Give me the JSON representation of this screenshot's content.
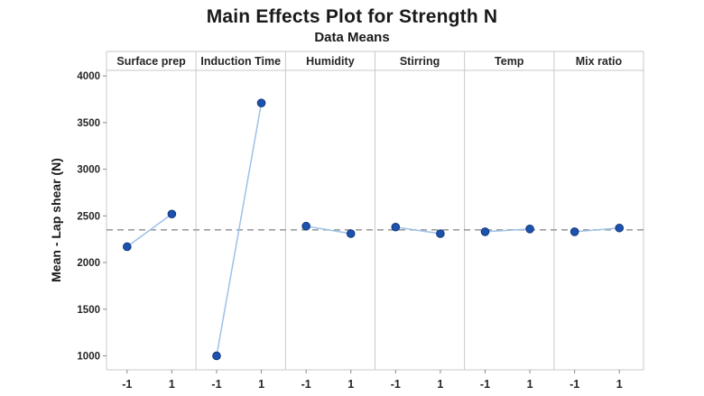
{
  "chart_data": {
    "type": "line",
    "chart_kind": "main-effects-plot",
    "title": "Main Effects Plot for Strength N",
    "subtitle": "Data Means",
    "ylabel": "Mean - Lap shear (N)",
    "x_levels": [
      "-1",
      "1"
    ],
    "panels": [
      {
        "factor": "Surface prep",
        "means": [
          2170,
          2520
        ]
      },
      {
        "factor": "Induction Time",
        "means": [
          1000,
          3710
        ]
      },
      {
        "factor": "Humidity",
        "means": [
          2390,
          2310
        ]
      },
      {
        "factor": "Stirring",
        "means": [
          2380,
          2310
        ]
      },
      {
        "factor": "Temp",
        "means": [
          2330,
          2360
        ]
      },
      {
        "factor": "Mix ratio",
        "means": [
          2330,
          2370
        ]
      }
    ],
    "overall_mean": 2350,
    "yticks": [
      1000,
      1500,
      2000,
      2500,
      3000,
      3500,
      4000
    ],
    "ylim": [
      850,
      4060
    ],
    "grid": false,
    "legend": "none",
    "mean_line_style": "dashed"
  },
  "colors": {
    "marker_fill": "#1d52ad",
    "marker_edge": "#10367d",
    "series_line": "#9dc1e8",
    "mean_line": "#9e9e9e",
    "frame": "#c9c9c9",
    "tick": "#8a8a8a",
    "text": "#262626"
  }
}
